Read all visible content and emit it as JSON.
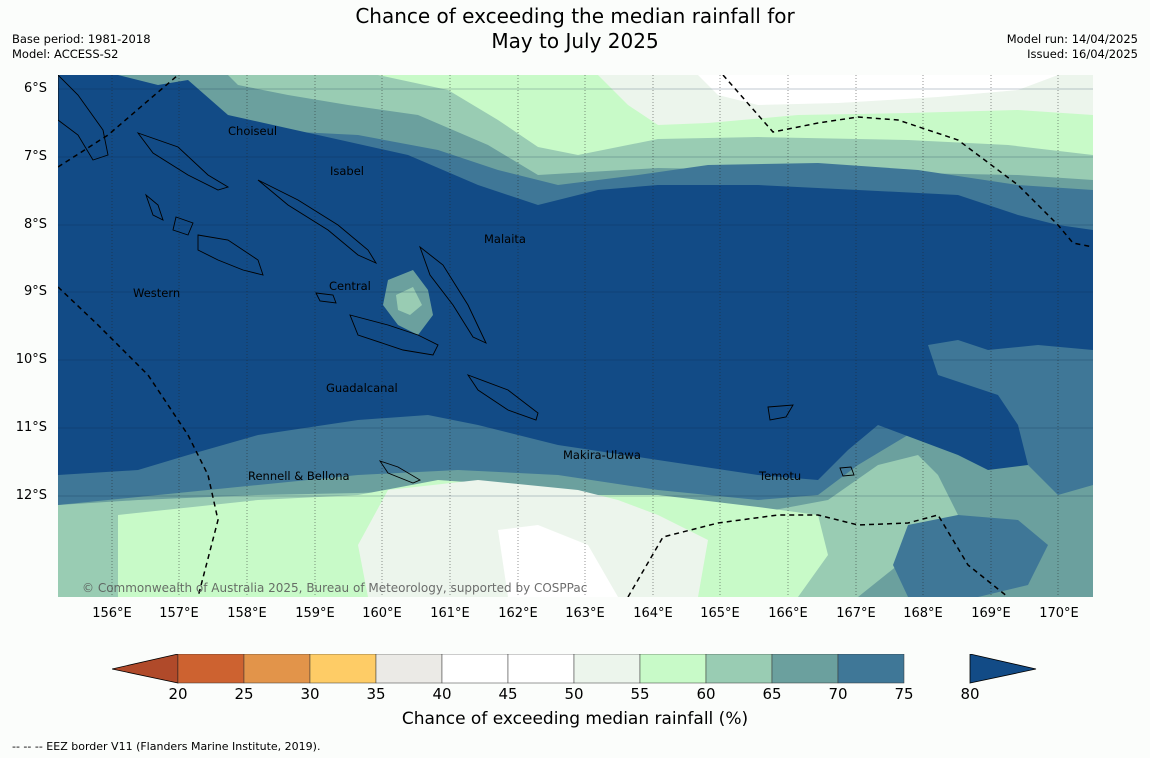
{
  "title_line1": "Chance of exceeding the median rainfall for",
  "title_line2": "May to July 2025",
  "base_period": "Base period: 1981-2018",
  "model": "Model: ACCESS-S2",
  "model_run": "Model run: 14/04/2025",
  "issued": "Issued: 16/04/2025",
  "lat_labels": [
    "6°S",
    "7°S",
    "8°S",
    "9°S",
    "10°S",
    "11°S",
    "12°S"
  ],
  "lon_labels": [
    "156°E",
    "157°E",
    "158°E",
    "159°E",
    "160°E",
    "161°E",
    "162°E",
    "163°E",
    "164°E",
    "165°E",
    "166°E",
    "167°E",
    "168°E",
    "169°E",
    "170°E"
  ],
  "provinces": [
    "Choiseul",
    "Isabel",
    "Malaita",
    "Western",
    "Central",
    "Guadalcanal",
    "Makira-Ulawa",
    "Rennell & Bellona",
    "Temotu"
  ],
  "copyright": "© Commonwealth of Australia 2025, Bureau of Meteorology, supported by COSPPac",
  "colorbar": {
    "label": "Chance of exceeding median rainfall (%)",
    "ticks": [
      "20",
      "25",
      "30",
      "35",
      "40",
      "45",
      "50",
      "55",
      "60",
      "65",
      "70",
      "75",
      "80"
    ],
    "colors": [
      "#b04a2a",
      "#cd6230",
      "#e2944a",
      "#fecc66",
      "#ebeae6",
      "#ffffff",
      "#ffffff",
      "#ecf5ec",
      "#c8fac8",
      "#99ccb3",
      "#6ba09e",
      "#3f7797",
      "#124b86"
    ]
  },
  "footer": "--  --  -- EEZ border V11 (Flanders Marine Institute, 2019)."
}
